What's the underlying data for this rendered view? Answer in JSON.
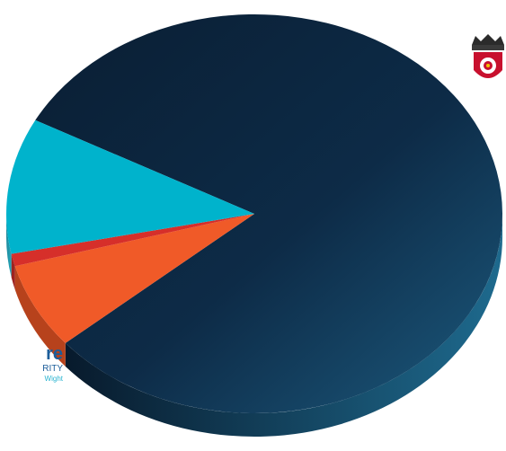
{
  "chart_data": {
    "type": "pie",
    "style": "3d",
    "slices": [
      {
        "value": 81,
        "color": "#0b2a45"
      },
      {
        "value": 7,
        "color": "#f05a28"
      },
      {
        "value": 1,
        "color": "#d62f2a"
      },
      {
        "value": 11,
        "color": "#00b3cc"
      }
    ]
  },
  "logo": {
    "line1": "re",
    "line2": "RITY",
    "line3": "Wight"
  },
  "colors": {
    "brand_blue": "#1c5d9a",
    "brand_cyan": "#28b3d0",
    "crest_red": "#c8102e"
  }
}
